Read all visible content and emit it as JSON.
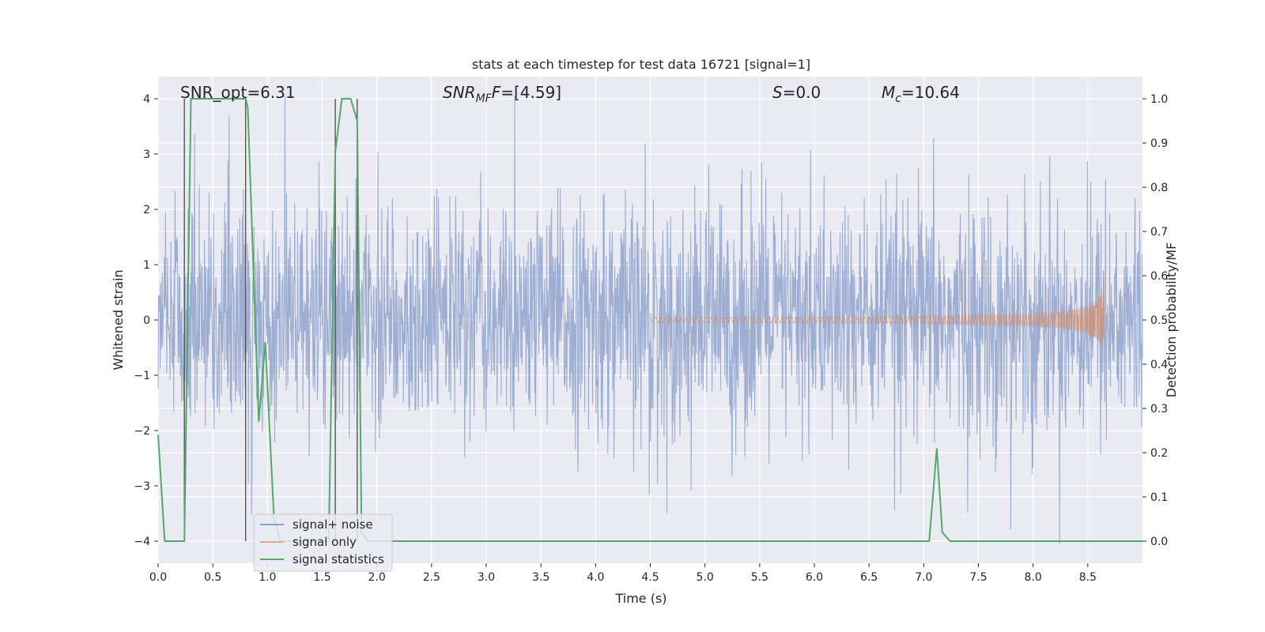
{
  "chart_data": {
    "type": "line",
    "title": "stats at each timestep for test data 16721 [signal=1]",
    "xlabel": "Time (s)",
    "ylabel": "Whitened strain",
    "y2label": "Detection probability/MF",
    "xlim": [
      0.0,
      9.0
    ],
    "ylim": [
      -4.4,
      4.4
    ],
    "y2lim": [
      -0.05,
      1.05
    ],
    "xticks": [
      "0.0",
      "0.5",
      "1.0",
      "1.5",
      "2.0",
      "2.5",
      "3.0",
      "3.5",
      "4.0",
      "4.5",
      "5.0",
      "5.5",
      "6.0",
      "6.5",
      "7.0",
      "7.5",
      "8.0",
      "8.5"
    ],
    "xtick_values": [
      0,
      0.5,
      1,
      1.5,
      2,
      2.5,
      3,
      3.5,
      4,
      4.5,
      5,
      5.5,
      6,
      6.5,
      7,
      7.5,
      8,
      8.5
    ],
    "yticks": [
      "−4",
      "−3",
      "−2",
      "−1",
      "0",
      "1",
      "2",
      "3",
      "4"
    ],
    "ytick_values": [
      -4,
      -3,
      -2,
      -1,
      0,
      1,
      2,
      3,
      4
    ],
    "y2ticks": [
      "0.0",
      "0.1",
      "0.2",
      "0.3",
      "0.4",
      "0.5",
      "0.6",
      "0.7",
      "0.8",
      "0.9",
      "1.0"
    ],
    "y2tick_values": [
      0,
      0.1,
      0.2,
      0.3,
      0.4,
      0.5,
      0.6,
      0.7,
      0.8,
      0.9,
      1.0
    ],
    "annotations": {
      "snr_opt": "SNR_opt=6.31",
      "snr_mf_base": "SNR",
      "snr_mf_sub": "MF",
      "snr_mf_rest": "=[4.59]",
      "s_label": "S",
      "s_rest": "=0.0",
      "mc_base": "M",
      "mc_sub": "c",
      "mc_rest": "=10.64"
    },
    "legend": {
      "placement": "lower-left",
      "entries": [
        "signal+ noise",
        "signal only",
        "signal statistics"
      ]
    },
    "series": [
      {
        "name": "signal+ noise",
        "color": "#8fa3cc",
        "description": "whitened strain noise, amplitude mostly within ±2.5, peaks near ±4",
        "noise_seed": 16721,
        "points": 2400
      },
      {
        "name": "signal only",
        "color": "#dd8452",
        "chirp": {
          "t_start": 4.5,
          "t_merge": 8.65,
          "peak_amplitude": 1.0
        }
      },
      {
        "name": "signal statistics",
        "color": "#55a868",
        "axis": "y2",
        "x": [
          0.0,
          0.06,
          0.24,
          0.3,
          0.8,
          0.82,
          0.92,
          0.98,
          1.0,
          1.06,
          1.12,
          1.56,
          1.62,
          1.68,
          1.76,
          1.82,
          1.86,
          1.92,
          7.05,
          7.12,
          7.17,
          7.24,
          9.0
        ],
        "y": [
          0.24,
          0.0,
          0.0,
          1.0,
          1.0,
          0.98,
          0.27,
          0.45,
          0.35,
          0.05,
          0.0,
          0.0,
          0.88,
          1.0,
          1.0,
          0.95,
          0.02,
          0.0,
          0.0,
          0.21,
          0.02,
          0.0,
          0.0
        ]
      }
    ],
    "vertical_markers": [
      0.24,
      0.8,
      1.62,
      1.82
    ]
  }
}
